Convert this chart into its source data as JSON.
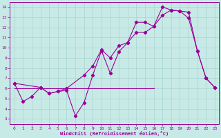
{
  "bg_color": "#c8eae6",
  "grid_color": "#a8d4d0",
  "line_color": "#990099",
  "xlabel": "Windchill (Refroidissement éolien,°C)",
  "ylabel_ticks": [
    3,
    4,
    5,
    6,
    7,
    8,
    9,
    10,
    11,
    12,
    13,
    14
  ],
  "xlabel_ticks": [
    0,
    1,
    2,
    3,
    4,
    5,
    6,
    7,
    8,
    9,
    10,
    11,
    12,
    13,
    14,
    15,
    16,
    17,
    18,
    19,
    20,
    21,
    22,
    23
  ],
  "xlim": [
    -0.5,
    23.5
  ],
  "ylim": [
    2.5,
    14.5
  ],
  "line1_x": [
    0,
    1,
    2,
    3,
    4,
    5,
    6,
    7,
    8,
    9,
    10,
    11,
    12,
    13,
    14,
    15,
    16,
    17,
    18,
    19,
    20,
    21,
    22,
    23
  ],
  "line1_y": [
    6.5,
    4.7,
    5.2,
    6.1,
    5.5,
    5.7,
    5.8,
    3.3,
    4.6,
    7.3,
    9.7,
    7.5,
    9.6,
    10.5,
    12.5,
    12.5,
    12.1,
    14.0,
    13.7,
    13.6,
    12.9,
    9.7,
    7.0,
    6.1
  ],
  "line2_x": [
    0,
    3,
    4,
    5,
    6,
    8,
    9,
    10,
    11,
    12,
    13,
    14,
    15,
    16,
    17,
    18,
    19,
    20,
    21,
    22,
    23
  ],
  "line2_y": [
    6.5,
    6.1,
    5.5,
    5.7,
    6.0,
    7.3,
    8.2,
    9.8,
    9.0,
    10.2,
    10.5,
    11.5,
    11.5,
    12.1,
    13.2,
    13.7,
    13.6,
    13.5,
    9.7,
    7.0,
    6.1
  ],
  "line3_x": [
    0,
    16.0
  ],
  "line3_y": [
    6.0,
    6.0
  ],
  "marker": "D",
  "markersize": 2.2,
  "linewidth": 0.8
}
